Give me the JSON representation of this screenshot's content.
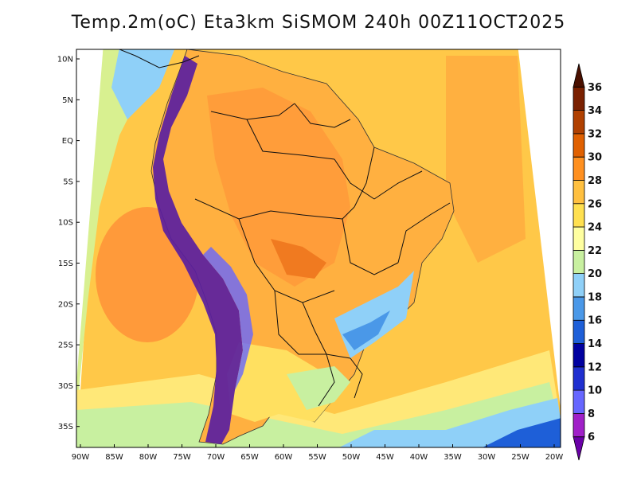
{
  "title": "Temp.2m(oC) Eta3km SiSMOM 240h 00Z11OCT2025",
  "map": {
    "variable": "2 m air temperature",
    "units": "°C",
    "region": "South America",
    "lat_labels": [
      "10N",
      "5N",
      "EQ",
      "5S",
      "10S",
      "15S",
      "20S",
      "25S",
      "30S",
      "35S"
    ],
    "lon_labels": [
      "90W",
      "85W",
      "80W",
      "75W",
      "70W",
      "65W",
      "60W",
      "55W",
      "50W",
      "45W",
      "40W",
      "35W",
      "30W",
      "25W",
      "20W"
    ]
  },
  "colorbar": {
    "levels": [
      6,
      8,
      10,
      12,
      14,
      16,
      18,
      20,
      22,
      24,
      26,
      28,
      30,
      32,
      34,
      36
    ],
    "labels": [
      "6",
      "8",
      "10",
      "12",
      "14",
      "16",
      "18",
      "20",
      "22",
      "24",
      "26",
      "28",
      "30",
      "32",
      "34",
      "36"
    ],
    "colors": [
      "#6a00a8",
      "#a020c8",
      "#6666ff",
      "#1f2fd0",
      "#0000a0",
      "#1e5fd8",
      "#4a98e8",
      "#8fd0f8",
      "#c8f0a0",
      "#ffffa0",
      "#ffe050",
      "#ffc040",
      "#ff9020",
      "#e06000",
      "#b04000",
      "#7a2000",
      "#4a1000"
    ]
  },
  "colors": {
    "sea": "#ffc848",
    "sea_warm": "#ff9a3a",
    "land": "#ffb040",
    "highland_cold": "#5a1ea0",
    "border": "#111111",
    "background": "#ffffff"
  }
}
